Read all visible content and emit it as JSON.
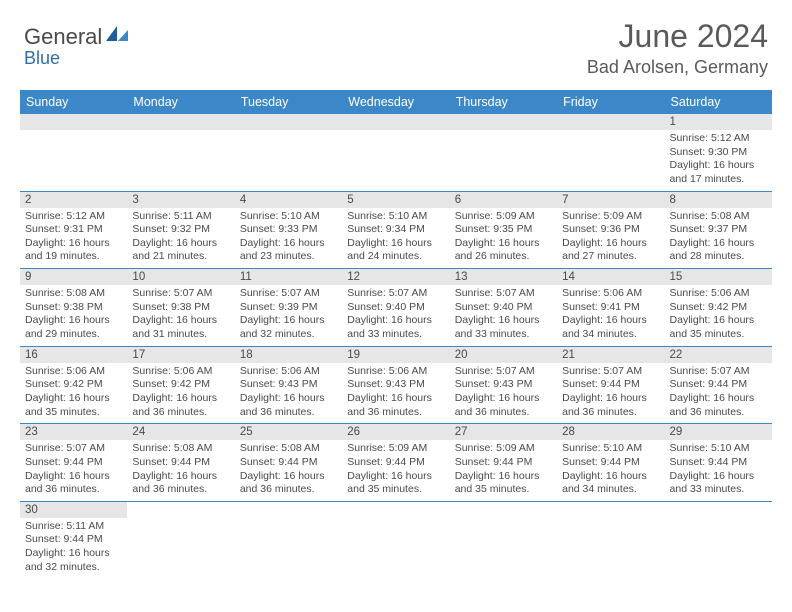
{
  "logo": {
    "part1": "General",
    "part2": "Blue"
  },
  "title": "June 2024",
  "location": "Bad Arolsen, Germany",
  "colors": {
    "header_bg": "#3b87c8",
    "header_text": "#ffffff",
    "daynum_bg": "#e6e6e6",
    "text": "#4a4a4a",
    "logo_blue": "#2f6fa8",
    "border": "#3b87c8"
  },
  "weekdays": [
    "Sunday",
    "Monday",
    "Tuesday",
    "Wednesday",
    "Thursday",
    "Friday",
    "Saturday"
  ],
  "weeks": [
    [
      null,
      null,
      null,
      null,
      null,
      null,
      {
        "n": "1",
        "sr": "5:12 AM",
        "ss": "9:30 PM",
        "dl": "16 hours and 17 minutes."
      }
    ],
    [
      {
        "n": "2",
        "sr": "5:12 AM",
        "ss": "9:31 PM",
        "dl": "16 hours and 19 minutes."
      },
      {
        "n": "3",
        "sr": "5:11 AM",
        "ss": "9:32 PM",
        "dl": "16 hours and 21 minutes."
      },
      {
        "n": "4",
        "sr": "5:10 AM",
        "ss": "9:33 PM",
        "dl": "16 hours and 23 minutes."
      },
      {
        "n": "5",
        "sr": "5:10 AM",
        "ss": "9:34 PM",
        "dl": "16 hours and 24 minutes."
      },
      {
        "n": "6",
        "sr": "5:09 AM",
        "ss": "9:35 PM",
        "dl": "16 hours and 26 minutes."
      },
      {
        "n": "7",
        "sr": "5:09 AM",
        "ss": "9:36 PM",
        "dl": "16 hours and 27 minutes."
      },
      {
        "n": "8",
        "sr": "5:08 AM",
        "ss": "9:37 PM",
        "dl": "16 hours and 28 minutes."
      }
    ],
    [
      {
        "n": "9",
        "sr": "5:08 AM",
        "ss": "9:38 PM",
        "dl": "16 hours and 29 minutes."
      },
      {
        "n": "10",
        "sr": "5:07 AM",
        "ss": "9:38 PM",
        "dl": "16 hours and 31 minutes."
      },
      {
        "n": "11",
        "sr": "5:07 AM",
        "ss": "9:39 PM",
        "dl": "16 hours and 32 minutes."
      },
      {
        "n": "12",
        "sr": "5:07 AM",
        "ss": "9:40 PM",
        "dl": "16 hours and 33 minutes."
      },
      {
        "n": "13",
        "sr": "5:07 AM",
        "ss": "9:40 PM",
        "dl": "16 hours and 33 minutes."
      },
      {
        "n": "14",
        "sr": "5:06 AM",
        "ss": "9:41 PM",
        "dl": "16 hours and 34 minutes."
      },
      {
        "n": "15",
        "sr": "5:06 AM",
        "ss": "9:42 PM",
        "dl": "16 hours and 35 minutes."
      }
    ],
    [
      {
        "n": "16",
        "sr": "5:06 AM",
        "ss": "9:42 PM",
        "dl": "16 hours and 35 minutes."
      },
      {
        "n": "17",
        "sr": "5:06 AM",
        "ss": "9:42 PM",
        "dl": "16 hours and 36 minutes."
      },
      {
        "n": "18",
        "sr": "5:06 AM",
        "ss": "9:43 PM",
        "dl": "16 hours and 36 minutes."
      },
      {
        "n": "19",
        "sr": "5:06 AM",
        "ss": "9:43 PM",
        "dl": "16 hours and 36 minutes."
      },
      {
        "n": "20",
        "sr": "5:07 AM",
        "ss": "9:43 PM",
        "dl": "16 hours and 36 minutes."
      },
      {
        "n": "21",
        "sr": "5:07 AM",
        "ss": "9:44 PM",
        "dl": "16 hours and 36 minutes."
      },
      {
        "n": "22",
        "sr": "5:07 AM",
        "ss": "9:44 PM",
        "dl": "16 hours and 36 minutes."
      }
    ],
    [
      {
        "n": "23",
        "sr": "5:07 AM",
        "ss": "9:44 PM",
        "dl": "16 hours and 36 minutes."
      },
      {
        "n": "24",
        "sr": "5:08 AM",
        "ss": "9:44 PM",
        "dl": "16 hours and 36 minutes."
      },
      {
        "n": "25",
        "sr": "5:08 AM",
        "ss": "9:44 PM",
        "dl": "16 hours and 36 minutes."
      },
      {
        "n": "26",
        "sr": "5:09 AM",
        "ss": "9:44 PM",
        "dl": "16 hours and 35 minutes."
      },
      {
        "n": "27",
        "sr": "5:09 AM",
        "ss": "9:44 PM",
        "dl": "16 hours and 35 minutes."
      },
      {
        "n": "28",
        "sr": "5:10 AM",
        "ss": "9:44 PM",
        "dl": "16 hours and 34 minutes."
      },
      {
        "n": "29",
        "sr": "5:10 AM",
        "ss": "9:44 PM",
        "dl": "16 hours and 33 minutes."
      }
    ],
    [
      {
        "n": "30",
        "sr": "5:11 AM",
        "ss": "9:44 PM",
        "dl": "16 hours and 32 minutes."
      },
      null,
      null,
      null,
      null,
      null,
      null
    ]
  ],
  "labels": {
    "sunrise": "Sunrise:",
    "sunset": "Sunset:",
    "daylight": "Daylight:"
  }
}
